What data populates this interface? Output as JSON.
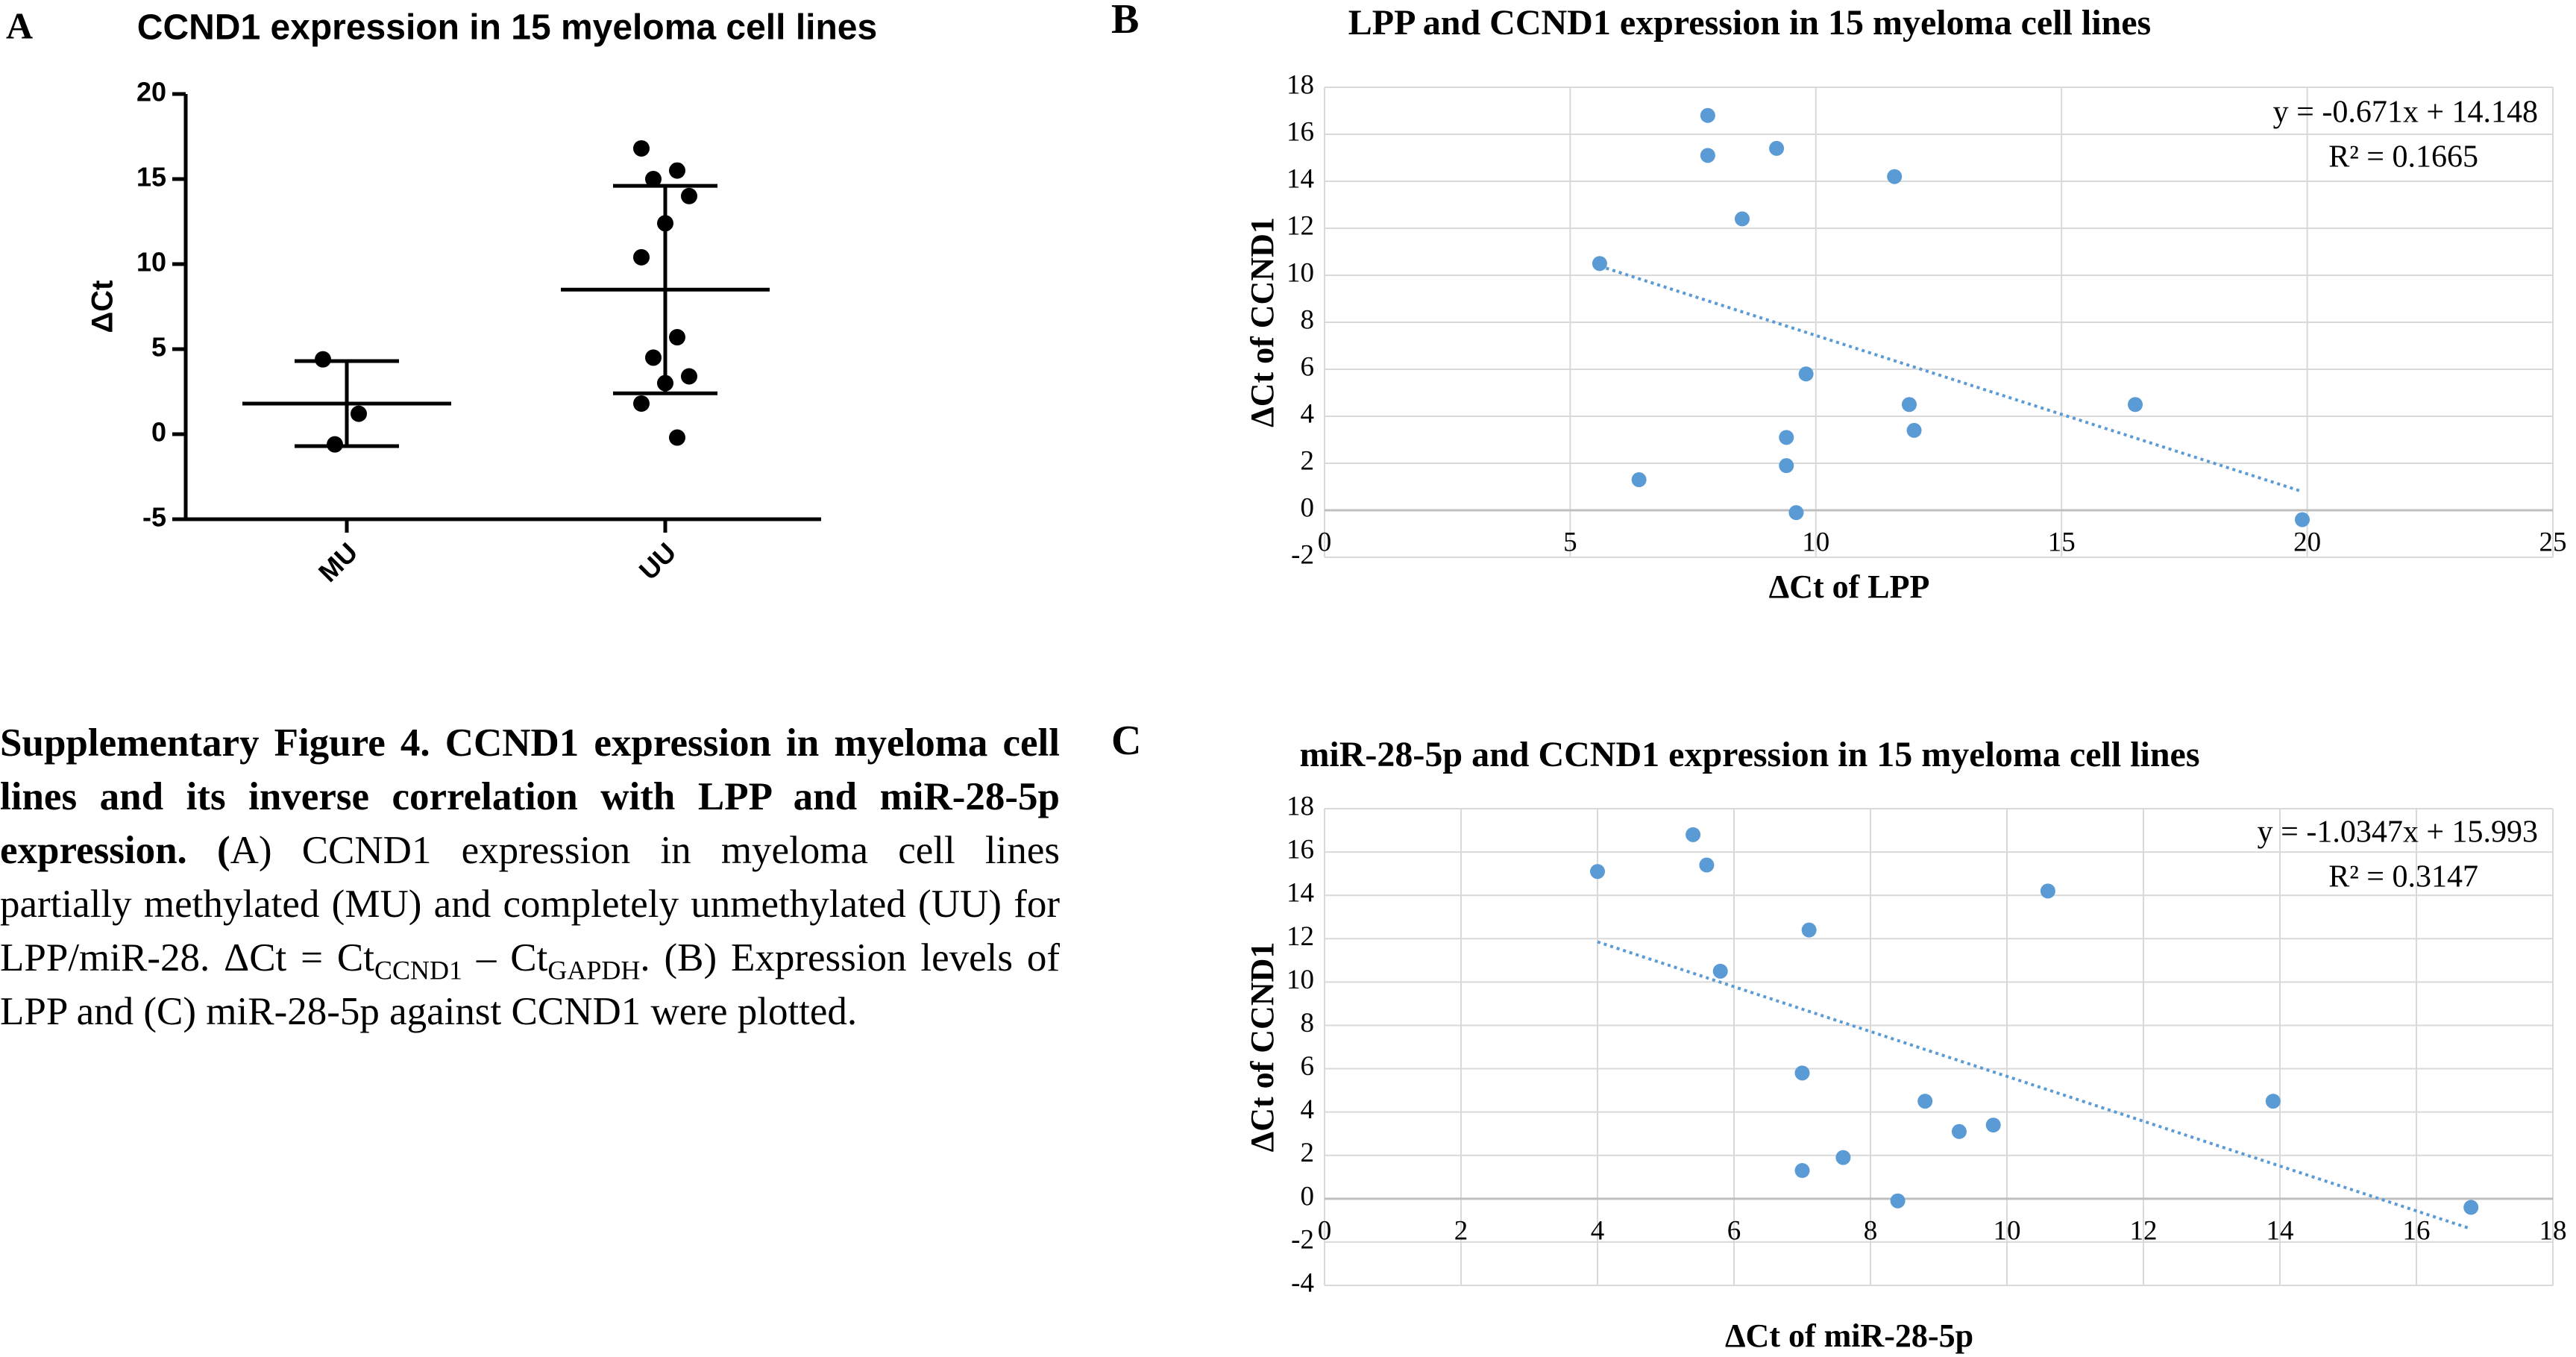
{
  "chart_data": [
    {
      "type": "dotplot",
      "panel": "A",
      "title": "CCND1 expression in 15 myeloma cell lines",
      "ylabel": "ΔCt",
      "categories": [
        "MU",
        "UU"
      ],
      "points": [
        [
          4.4,
          1.2,
          -0.6
        ],
        [
          16.8,
          15.5,
          15.0,
          14.0,
          12.4,
          10.4,
          5.7,
          4.5,
          3.4,
          3.0,
          1.8,
          -0.2
        ]
      ],
      "means": [
        1.8,
        8.5
      ],
      "sd": [
        2.5,
        6.1
      ],
      "ylim": [
        -5,
        20
      ],
      "yticks": [
        -5,
        0,
        5,
        10,
        15,
        20
      ],
      "color": "#000000"
    },
    {
      "type": "scatter",
      "panel": "B",
      "title": "LPP and CCND1 expression in 15 myeloma cell lines",
      "xlabel": "ΔCt of LPP",
      "ylabel": "ΔCt of CCND1",
      "x": [
        7.8,
        7.8,
        9.2,
        11.6,
        8.5,
        5.6,
        9.8,
        11.9,
        16.5,
        12.0,
        9.4,
        9.4,
        6.4,
        9.6,
        19.9
      ],
      "values": [
        16.8,
        15.1,
        15.4,
        14.2,
        12.4,
        10.5,
        5.8,
        4.5,
        4.5,
        3.4,
        3.1,
        1.9,
        1.3,
        -0.1,
        -0.4
      ],
      "xlim": [
        0,
        25
      ],
      "xticks": [
        0,
        5,
        10,
        15,
        20,
        25
      ],
      "ylim": [
        -2,
        18
      ],
      "yticks": [
        -2,
        0,
        2,
        4,
        6,
        8,
        10,
        12,
        14,
        16,
        18
      ],
      "grid": true,
      "color": "#5b9bd5",
      "trendline": {
        "slope": -0.671,
        "intercept": 14.148,
        "equation": "y = -0.671x + 14.148",
        "r2": "R² = 0.1665"
      }
    },
    {
      "type": "scatter",
      "panel": "C",
      "title": "miR-28-5p and CCND1 expression in 15 myeloma cell lines",
      "xlabel": "ΔCt of miR-28-5p",
      "ylabel": "ΔCt of CCND1",
      "x": [
        5.4,
        4.0,
        5.6,
        10.6,
        7.1,
        5.8,
        7.0,
        8.8,
        13.9,
        9.8,
        9.3,
        7.6,
        7.0,
        8.4,
        16.8
      ],
      "values": [
        16.8,
        15.1,
        15.4,
        14.2,
        12.4,
        10.5,
        5.8,
        4.5,
        4.5,
        3.4,
        3.1,
        1.9,
        1.3,
        -0.1,
        -0.4
      ],
      "xlim": [
        0,
        18
      ],
      "xticks": [
        0,
        2,
        4,
        6,
        8,
        10,
        12,
        14,
        16,
        18
      ],
      "ylim": [
        -4,
        18
      ],
      "yticks": [
        -4,
        -2,
        0,
        2,
        4,
        6,
        8,
        10,
        12,
        14,
        16,
        18
      ],
      "grid": true,
      "color": "#5b9bd5",
      "trendline": {
        "slope": -1.0347,
        "intercept": 15.993,
        "equation": "y = -1.0347x + 15.993",
        "r2": "R² = 0.3147"
      }
    }
  ],
  "caption": {
    "title": "Supplementary Figure 4. CCND1 expression in myeloma cell lines and its inverse correlation with LPP and miR-28-5p expression. (",
    "body": [
      "A) CCND1 expression in myeloma cell lines partially methylated (MU) and completely unmethylated (UU) for LPP/miR-28. ΔCt = Ct",
      "CCND1",
      " – Ct",
      "GAPDH",
      ". (B) Expression levels of LPP and (C) miR-28-5p against CCND1 were plotted."
    ]
  }
}
